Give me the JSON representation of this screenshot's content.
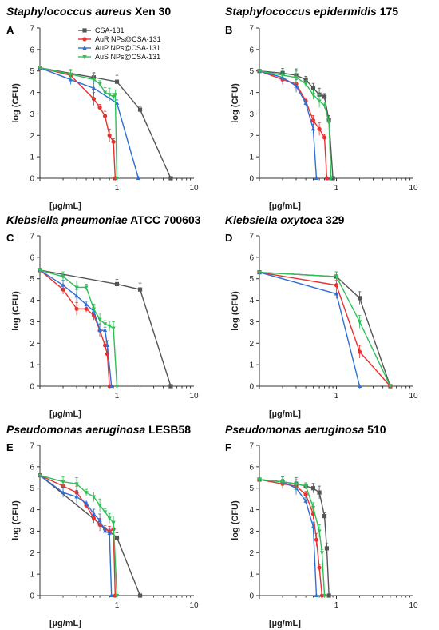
{
  "colors": {
    "CSA-131": "#555555",
    "AuR NPs@CSA-131": "#e8312f",
    "AuP NPs@CSA-131": "#2e6fd4",
    "AuS NPs@CSA-131": "#2fbf57"
  },
  "chart_data": [
    {
      "type": "line",
      "panel": "A",
      "title_italic": "Staphylococcus aureus",
      "title_rest": " Xen 30",
      "xlabel": "[µg/mL]",
      "ylabel": "log (CFU)",
      "xscale": "log",
      "xlim": [
        0.1,
        10
      ],
      "ylim": [
        0,
        7
      ],
      "x_ticks": [
        1,
        10
      ],
      "y_ticks": [
        0,
        1,
        2,
        3,
        4,
        5,
        6,
        7
      ],
      "legend": "top",
      "series": [
        {
          "name": "CSA-131",
          "x": [
            0.1,
            0.5,
            1,
            2,
            5
          ],
          "y": [
            5.15,
            4.7,
            4.5,
            3.2,
            0
          ]
        },
        {
          "name": "AuR NPs@CSA-131",
          "x": [
            0.1,
            0.25,
            0.5,
            0.6,
            0.7,
            0.8,
            0.9,
            0.95
          ],
          "y": [
            5.15,
            4.8,
            3.7,
            3.3,
            2.9,
            2.0,
            1.7,
            0
          ]
        },
        {
          "name": "AuP NPs@CSA-131",
          "x": [
            0.1,
            0.25,
            0.5,
            1,
            1.9
          ],
          "y": [
            5.15,
            4.6,
            4.2,
            3.5,
            0
          ]
        },
        {
          "name": "AuS NPs@CSA-131",
          "x": [
            0.1,
            0.25,
            0.5,
            0.6,
            0.7,
            0.8,
            0.9,
            0.95,
            1.0
          ],
          "y": [
            5.15,
            4.85,
            4.6,
            4.4,
            4.0,
            3.9,
            3.8,
            3.9,
            0
          ]
        }
      ]
    },
    {
      "type": "line",
      "panel": "B",
      "title_italic": "Staphylococcus epidermidis",
      "title_rest": " 175",
      "xlabel": "[µg/mL]",
      "ylabel": "log (CFU)",
      "xscale": "log",
      "xlim": [
        0.1,
        10
      ],
      "ylim": [
        0,
        7
      ],
      "x_ticks": [
        1,
        10
      ],
      "y_ticks": [
        0,
        1,
        2,
        3,
        4,
        5,
        6,
        7
      ],
      "series": [
        {
          "name": "CSA-131",
          "x": [
            0.1,
            0.2,
            0.3,
            0.4,
            0.5,
            0.6,
            0.7,
            0.8,
            0.9
          ],
          "y": [
            5.0,
            4.9,
            4.8,
            4.6,
            4.2,
            3.9,
            3.8,
            2.7,
            0
          ]
        },
        {
          "name": "AuR NPs@CSA-131",
          "x": [
            0.1,
            0.2,
            0.3,
            0.4,
            0.5,
            0.6,
            0.7,
            0.75
          ],
          "y": [
            5.0,
            4.6,
            4.4,
            3.6,
            2.7,
            2.3,
            1.9,
            0
          ]
        },
        {
          "name": "AuP NPs@CSA-131",
          "x": [
            0.1,
            0.2,
            0.3,
            0.4,
            0.5,
            0.55
          ],
          "y": [
            5.0,
            4.7,
            4.3,
            3.5,
            2.3,
            0
          ]
        },
        {
          "name": "AuS NPs@CSA-131",
          "x": [
            0.1,
            0.2,
            0.3,
            0.4,
            0.5,
            0.6,
            0.7,
            0.8,
            0.85
          ],
          "y": [
            5.0,
            4.8,
            4.7,
            4.4,
            3.9,
            3.6,
            3.4,
            2.6,
            0
          ]
        }
      ]
    },
    {
      "type": "line",
      "panel": "C",
      "title_italic": "Klebsiella pneumoniae",
      "title_rest": " ATCC 700603",
      "xlabel": "[µg/mL]",
      "ylabel": "log (CFU)",
      "xscale": "log",
      "xlim": [
        0.1,
        10
      ],
      "ylim": [
        0,
        7
      ],
      "x_ticks": [
        1,
        10
      ],
      "y_ticks": [
        0,
        1,
        2,
        3,
        4,
        5,
        6,
        7
      ],
      "series": [
        {
          "name": "CSA-131",
          "x": [
            0.1,
            1,
            2,
            5
          ],
          "y": [
            5.4,
            4.75,
            4.5,
            0
          ]
        },
        {
          "name": "AuR NPs@CSA-131",
          "x": [
            0.1,
            0.2,
            0.3,
            0.4,
            0.5,
            0.6,
            0.7,
            0.75,
            0.8
          ],
          "y": [
            5.4,
            4.5,
            3.6,
            3.6,
            3.3,
            2.6,
            1.9,
            1.5,
            0
          ]
        },
        {
          "name": "AuP NPs@CSA-131",
          "x": [
            0.1,
            0.2,
            0.3,
            0.4,
            0.5,
            0.6,
            0.7,
            0.75,
            0.85
          ],
          "y": [
            5.4,
            4.7,
            4.2,
            3.8,
            3.5,
            2.6,
            2.6,
            1.9,
            0
          ]
        },
        {
          "name": "AuS NPs@CSA-131",
          "x": [
            0.1,
            0.2,
            0.3,
            0.4,
            0.5,
            0.6,
            0.7,
            0.8,
            0.9,
            1.0
          ],
          "y": [
            5.4,
            5.1,
            4.6,
            4.6,
            3.6,
            3.1,
            2.9,
            2.8,
            2.7,
            0
          ]
        }
      ]
    },
    {
      "type": "line",
      "panel": "D",
      "title_italic": "Klebsiella oxytoca",
      "title_rest": " 329",
      "xlabel": "[µg/mL]",
      "ylabel": "log (CFU)",
      "xscale": "log",
      "xlim": [
        0.1,
        10
      ],
      "ylim": [
        0,
        7
      ],
      "x_ticks": [
        1,
        10
      ],
      "y_ticks": [
        0,
        1,
        2,
        3,
        4,
        5,
        6,
        7
      ],
      "series": [
        {
          "name": "CSA-131",
          "x": [
            0.1,
            1,
            2,
            5
          ],
          "y": [
            5.3,
            5.1,
            4.1,
            0
          ]
        },
        {
          "name": "AuR NPs@CSA-131",
          "x": [
            0.1,
            1,
            2,
            5
          ],
          "y": [
            5.3,
            4.7,
            1.6,
            0
          ]
        },
        {
          "name": "AuP NPs@CSA-131",
          "x": [
            0.1,
            1,
            2
          ],
          "y": [
            5.3,
            4.3,
            0
          ]
        },
        {
          "name": "AuS NPs@CSA-131",
          "x": [
            0.1,
            1,
            2,
            5
          ],
          "y": [
            5.3,
            5.1,
            3.0,
            0
          ]
        }
      ]
    },
    {
      "type": "line",
      "panel": "E",
      "title_italic": "Pseudomonas aeruginosa",
      "title_rest": " LESB58",
      "xlabel": "[µg/mL]",
      "ylabel": "log (CFU)",
      "xscale": "log",
      "xlim": [
        0.1,
        10
      ],
      "ylim": [
        0,
        7
      ],
      "x_ticks": [
        1,
        10
      ],
      "y_ticks": [
        0,
        1,
        2,
        3,
        4,
        5,
        6,
        7
      ],
      "series": [
        {
          "name": "CSA-131",
          "x": [
            0.1,
            1,
            2
          ],
          "y": [
            5.6,
            2.7,
            0
          ]
        },
        {
          "name": "AuR NPs@CSA-131",
          "x": [
            0.1,
            0.2,
            0.3,
            0.4,
            0.5,
            0.6,
            0.7,
            0.8,
            0.9,
            0.95
          ],
          "y": [
            5.6,
            5.1,
            4.8,
            4.2,
            3.6,
            3.3,
            3.1,
            3.0,
            3.1,
            0
          ]
        },
        {
          "name": "AuP NPs@CSA-131",
          "x": [
            0.1,
            0.2,
            0.3,
            0.4,
            0.5,
            0.6,
            0.7,
            0.8,
            0.85
          ],
          "y": [
            5.6,
            4.8,
            4.6,
            4.3,
            3.8,
            3.5,
            3.0,
            2.9,
            0
          ]
        },
        {
          "name": "AuS NPs@CSA-131",
          "x": [
            0.1,
            0.2,
            0.3,
            0.4,
            0.5,
            0.6,
            0.7,
            0.8,
            0.9,
            1.0
          ],
          "y": [
            5.6,
            5.3,
            5.2,
            4.8,
            4.6,
            4.2,
            3.9,
            3.6,
            3.4,
            0
          ]
        }
      ]
    },
    {
      "type": "line",
      "panel": "F",
      "title_italic": "Pseudomonas aeruginosa",
      "title_rest": " 510",
      "xlabel": "[µg/mL]",
      "ylabel": "log (CFU)",
      "xscale": "log",
      "xlim": [
        0.1,
        10
      ],
      "ylim": [
        0,
        7
      ],
      "x_ticks": [
        1,
        10
      ],
      "y_ticks": [
        0,
        1,
        2,
        3,
        4,
        5,
        6,
        7
      ],
      "series": [
        {
          "name": "CSA-131",
          "x": [
            0.1,
            0.2,
            0.3,
            0.4,
            0.5,
            0.6,
            0.7,
            0.75,
            0.8
          ],
          "y": [
            5.4,
            5.3,
            5.2,
            5.1,
            5.0,
            4.8,
            3.7,
            2.2,
            0
          ]
        },
        {
          "name": "AuR NPs@CSA-131",
          "x": [
            0.1,
            0.2,
            0.3,
            0.4,
            0.5,
            0.55,
            0.6,
            0.65
          ],
          "y": [
            5.4,
            5.2,
            5.1,
            4.7,
            3.8,
            2.6,
            1.3,
            0
          ]
        },
        {
          "name": "AuP NPs@CSA-131",
          "x": [
            0.1,
            0.2,
            0.3,
            0.4,
            0.5,
            0.55
          ],
          "y": [
            5.4,
            5.3,
            5.0,
            4.4,
            3.2,
            0
          ]
        },
        {
          "name": "AuS NPs@CSA-131",
          "x": [
            0.1,
            0.2,
            0.3,
            0.4,
            0.5,
            0.6,
            0.65,
            0.7
          ],
          "y": [
            5.4,
            5.3,
            5.2,
            5.1,
            4.1,
            3.0,
            2.0,
            0
          ]
        }
      ]
    }
  ]
}
